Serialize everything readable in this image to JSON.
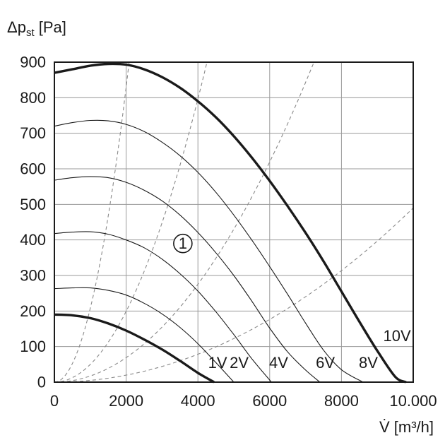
{
  "chart_data": {
    "type": "line",
    "title": "",
    "ylabel": {
      "main": "Δp",
      "sub": "st",
      "unit": " [Pa]"
    },
    "xlabel": "V̇ [m³/h]",
    "xlim": [
      0,
      10000
    ],
    "ylim": [
      0,
      900
    ],
    "grid": true,
    "x_ticks": [
      {
        "value": 0,
        "label": "0"
      },
      {
        "value": 2000,
        "label": "2000"
      },
      {
        "value": 4000,
        "label": "4000"
      },
      {
        "value": 6000,
        "label": "6000"
      },
      {
        "value": 8000,
        "label": "8000"
      },
      {
        "value": 10000,
        "label": "10.000"
      }
    ],
    "y_ticks": [
      {
        "value": 0,
        "label": "0"
      },
      {
        "value": 100,
        "label": "100"
      },
      {
        "value": 200,
        "label": "200"
      },
      {
        "value": 300,
        "label": "300"
      },
      {
        "value": 400,
        "label": "400"
      },
      {
        "value": 500,
        "label": "500"
      },
      {
        "value": 600,
        "label": "600"
      },
      {
        "value": 700,
        "label": "700"
      },
      {
        "value": 800,
        "label": "800"
      },
      {
        "value": 900,
        "label": "900"
      }
    ],
    "series": [
      {
        "name": "1V",
        "bold": true,
        "points": [
          [
            0,
            190
          ],
          [
            500,
            188
          ],
          [
            1000,
            180
          ],
          [
            1500,
            165
          ],
          [
            2000,
            145
          ],
          [
            2500,
            120
          ],
          [
            3000,
            92
          ],
          [
            3500,
            60
          ],
          [
            4000,
            26
          ],
          [
            4450,
            0
          ]
        ]
      },
      {
        "name": "2V",
        "bold": false,
        "points": [
          [
            0,
            263
          ],
          [
            500,
            265
          ],
          [
            1000,
            265
          ],
          [
            1500,
            258
          ],
          [
            2000,
            245
          ],
          [
            2500,
            222
          ],
          [
            3000,
            192
          ],
          [
            3500,
            154
          ],
          [
            4000,
            108
          ],
          [
            4500,
            55
          ],
          [
            5000,
            0
          ]
        ]
      },
      {
        "name": "4V",
        "bold": false,
        "points": [
          [
            0,
            418
          ],
          [
            500,
            422
          ],
          [
            1000,
            423
          ],
          [
            1500,
            416
          ],
          [
            2000,
            400
          ],
          [
            2500,
            378
          ],
          [
            3000,
            346
          ],
          [
            3500,
            305
          ],
          [
            4000,
            256
          ],
          [
            4500,
            198
          ],
          [
            5000,
            134
          ],
          [
            5500,
            66
          ],
          [
            6050,
            0
          ]
        ]
      },
      {
        "name": "6V",
        "bold": false,
        "points": [
          [
            0,
            568
          ],
          [
            500,
            575
          ],
          [
            1000,
            578
          ],
          [
            1500,
            575
          ],
          [
            2000,
            562
          ],
          [
            2500,
            540
          ],
          [
            3000,
            510
          ],
          [
            3500,
            470
          ],
          [
            4000,
            421
          ],
          [
            4500,
            364
          ],
          [
            5000,
            300
          ],
          [
            5500,
            228
          ],
          [
            6000,
            152
          ],
          [
            6500,
            85
          ],
          [
            7000,
            34
          ],
          [
            7400,
            0
          ]
        ]
      },
      {
        "name": "8V",
        "bold": false,
        "points": [
          [
            0,
            720
          ],
          [
            500,
            730
          ],
          [
            1000,
            736
          ],
          [
            1500,
            735
          ],
          [
            2000,
            725
          ],
          [
            2500,
            705
          ],
          [
            3000,
            675
          ],
          [
            3500,
            637
          ],
          [
            4000,
            590
          ],
          [
            4500,
            534
          ],
          [
            5000,
            470
          ],
          [
            5500,
            400
          ],
          [
            6000,
            325
          ],
          [
            6500,
            247
          ],
          [
            7000,
            166
          ],
          [
            7500,
            90
          ],
          [
            8000,
            35
          ],
          [
            8600,
            0
          ]
        ]
      },
      {
        "name": "10V",
        "bold": true,
        "points": [
          [
            0,
            870
          ],
          [
            500,
            880
          ],
          [
            1000,
            890
          ],
          [
            1500,
            895
          ],
          [
            2000,
            893
          ],
          [
            2500,
            880
          ],
          [
            3000,
            858
          ],
          [
            3500,
            828
          ],
          [
            4000,
            790
          ],
          [
            4500,
            745
          ],
          [
            5000,
            692
          ],
          [
            5500,
            632
          ],
          [
            6000,
            566
          ],
          [
            6500,
            495
          ],
          [
            7000,
            420
          ],
          [
            7500,
            340
          ],
          [
            8000,
            255
          ],
          [
            8500,
            170
          ],
          [
            9000,
            88
          ],
          [
            9500,
            15
          ],
          [
            9800,
            0
          ]
        ]
      }
    ],
    "system_curves": [
      {
        "k": 0.0002075
      },
      {
        "k": 4.98e-05
      },
      {
        "k": 1.72e-05
      },
      {
        "k": 4.9e-06
      }
    ],
    "curve_labels": [
      {
        "text": "1V",
        "x": 4550,
        "y": 55
      },
      {
        "text": "2V",
        "x": 5150,
        "y": 55
      },
      {
        "text": "4V",
        "x": 6250,
        "y": 55
      },
      {
        "text": "6V",
        "x": 7550,
        "y": 55
      },
      {
        "text": "8V",
        "x": 8750,
        "y": 55
      },
      {
        "text": "10V",
        "x": 9550,
        "y": 130
      }
    ],
    "marker": {
      "text": "1",
      "x": 3580,
      "y": 390
    }
  }
}
